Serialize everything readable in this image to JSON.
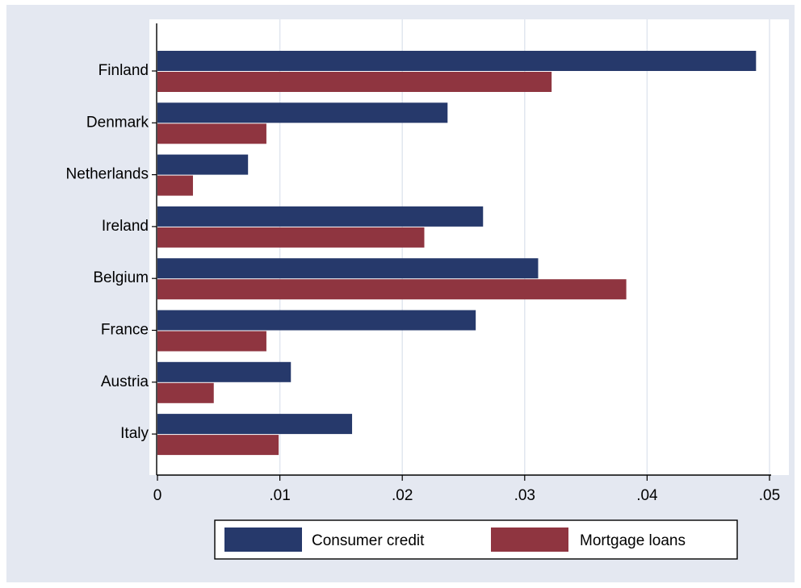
{
  "colors": {
    "outer_background": "#e4e8f1",
    "plot_background": "#ffffff",
    "grid": "#e1e6ef",
    "axis": "#000000"
  },
  "chart_data": {
    "type": "bar",
    "orientation": "horizontal",
    "categories": [
      "Finland",
      "Denmark",
      "Netherlands",
      "Ireland",
      "Belgium",
      "France",
      "Austria",
      "Italy"
    ],
    "series": [
      {
        "name": "Consumer credit",
        "color": "#26396b",
        "values": [
          0.0489,
          0.0237,
          0.0074,
          0.0266,
          0.0311,
          0.026,
          0.0109,
          0.0159
        ]
      },
      {
        "name": "Mortgage loans",
        "color": "#8f3540",
        "values": [
          0.0322,
          0.0089,
          0.0029,
          0.0218,
          0.0383,
          0.0089,
          0.0046,
          0.0099
        ]
      }
    ],
    "xlim": [
      0,
      0.05
    ],
    "x_ticks": [
      "0",
      ".01",
      ".02",
      ".03",
      ".04",
      ".05"
    ],
    "x_tick_values": [
      0,
      0.01,
      0.02,
      0.03,
      0.04,
      0.05
    ],
    "grid": true,
    "legend_position": "bottom",
    "title": "",
    "xlabel": "",
    "ylabel": ""
  }
}
